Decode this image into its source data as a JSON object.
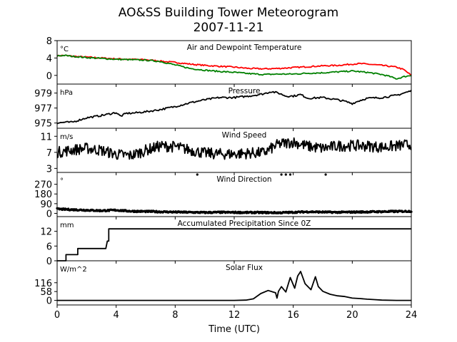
{
  "title": "AO&SS Building Tower Meteorogram",
  "subtitle": "2007-11-21",
  "xlabel": "Time (UTC)",
  "chart_data": [
    {
      "type": "line",
      "title": "Air and Dewpoint Temperature",
      "ylabel": "°C",
      "xlim": [
        0,
        24
      ],
      "ylim": [
        -2,
        8
      ],
      "yticks": [
        0,
        4,
        8
      ],
      "series": [
        {
          "name": "",
          "color": "#ff0000",
          "x": [
            0,
            0.5,
            1,
            2,
            3,
            4,
            5,
            6,
            7,
            7.5,
            8,
            9,
            10,
            11,
            12,
            13,
            14,
            15,
            16,
            17,
            18,
            19,
            20,
            20.5,
            21,
            22,
            22.5,
            23,
            23.5,
            24
          ],
          "y": [
            4.5,
            4.6,
            4.4,
            4.2,
            4.0,
            3.8,
            3.7,
            3.6,
            3.3,
            3.1,
            3.0,
            2.6,
            2.3,
            2.1,
            1.9,
            1.6,
            1.5,
            1.6,
            1.8,
            2.0,
            2.2,
            2.3,
            2.6,
            2.7,
            2.6,
            2.3,
            2.1,
            1.9,
            1.3,
            0.0
          ]
        },
        {
          "name": "",
          "color": "#008000",
          "x": [
            0,
            0.5,
            1,
            2,
            3,
            4,
            5,
            6,
            7,
            8,
            9,
            10,
            11,
            12,
            13,
            14,
            15,
            16,
            17,
            18,
            19,
            20,
            21,
            22,
            22.5,
            23,
            23.5,
            24
          ],
          "y": [
            4.5,
            4.6,
            4.4,
            4.1,
            3.9,
            3.7,
            3.6,
            3.5,
            3.2,
            2.4,
            1.6,
            1.2,
            0.9,
            0.7,
            0.4,
            0.2,
            0.3,
            0.3,
            0.5,
            0.6,
            0.8,
            1.0,
            0.7,
            0.2,
            -0.2,
            -0.8,
            -0.3,
            0.0
          ]
        }
      ]
    },
    {
      "type": "line",
      "title": "Pressure",
      "ylabel": "hPa",
      "xlim": [
        0,
        24
      ],
      "ylim": [
        974.3,
        980.2
      ],
      "yticks": [
        975,
        977,
        979
      ],
      "series": [
        {
          "name": "",
          "color": "#000000",
          "x": [
            0,
            0.5,
            1,
            1.5,
            2,
            3,
            4,
            4.3,
            4.7,
            5,
            6,
            7,
            8,
            9,
            10,
            11,
            12,
            13,
            14,
            14.5,
            15,
            15.5,
            16,
            16.5,
            17,
            18,
            19,
            19.5,
            20,
            20.5,
            21,
            22,
            23,
            23.5,
            24
          ],
          "y": [
            975.0,
            975.1,
            975.1,
            975.4,
            975.7,
            976.0,
            976.4,
            975.9,
            976.3,
            976.3,
            976.5,
            976.8,
            977.2,
            977.7,
            978.1,
            978.4,
            978.4,
            978.6,
            978.9,
            979.2,
            979.0,
            978.6,
            978.6,
            978.8,
            978.3,
            978.4,
            978.1,
            977.9,
            977.6,
            978.0,
            978.3,
            978.4,
            978.7,
            979.0,
            979.3
          ]
        }
      ]
    },
    {
      "type": "line",
      "title": "Wind Speed",
      "ylabel": "m/s",
      "xlim": [
        0,
        24
      ],
      "ylim": [
        2,
        13
      ],
      "yticks": [
        3,
        7,
        11
      ],
      "series": [
        {
          "name": "",
          "color": "#000000",
          "x": [
            0,
            1,
            2,
            3,
            4,
            5,
            6,
            7,
            8,
            9,
            10,
            11,
            12,
            13,
            14,
            15,
            16,
            17,
            18,
            19,
            20,
            21,
            22,
            23,
            24
          ],
          "y": [
            7.0,
            7.6,
            8.0,
            7.5,
            6.5,
            6.2,
            7.5,
            8.6,
            8.4,
            7.6,
            6.8,
            6.6,
            6.6,
            6.8,
            6.9,
            9.0,
            9.6,
            8.5,
            8.0,
            8.6,
            8.7,
            8.6,
            8.3,
            8.6,
            9.0
          ]
        }
      ]
    },
    {
      "type": "scatter",
      "title": "Wind Direction",
      "ylabel": "°",
      "xlim": [
        0,
        24
      ],
      "ylim": [
        -30,
        380
      ],
      "yticks": [
        0,
        90,
        180,
        270
      ],
      "series": [
        {
          "name": "",
          "color": "#000000",
          "x": [
            0,
            1,
            2,
            3,
            4,
            5,
            6,
            7,
            8,
            9,
            10,
            11,
            12,
            13,
            14,
            15,
            16,
            17,
            18,
            19,
            20,
            21,
            22,
            23,
            24
          ],
          "y": [
            40,
            35,
            30,
            25,
            30,
            20,
            18,
            15,
            12,
            10,
            8,
            10,
            9,
            8,
            8,
            6,
            10,
            15,
            12,
            10,
            12,
            14,
            16,
            18,
            20
          ]
        },
        {
          "name": "",
          "color": "#000000",
          "x": [
            9.5,
            15.2,
            15.5,
            15.8,
            18.2
          ],
          "y": [
            360,
            360,
            360,
            360,
            360
          ]
        }
      ]
    },
    {
      "type": "line",
      "title": "Accumulated Precipitation Since 0Z",
      "ylabel": "mm",
      "xlim": [
        0,
        24
      ],
      "ylim": [
        0,
        18
      ],
      "yticks": [
        0,
        6,
        12
      ],
      "series": [
        {
          "name": "",
          "color": "#000000",
          "x": [
            0,
            0.6,
            0.6,
            1.4,
            1.4,
            3.3,
            3.4,
            3.5,
            3.5,
            24
          ],
          "y": [
            0,
            0,
            2.5,
            2.5,
            5.0,
            5.0,
            8.0,
            8.0,
            13.0,
            13.0
          ]
        }
      ]
    },
    {
      "type": "line",
      "title": "Solar Flux",
      "ylabel": "W/m^2",
      "xlim": [
        0,
        24
      ],
      "ylim": [
        -30,
        260
      ],
      "yticks": [
        0,
        58,
        116
      ],
      "series": [
        {
          "name": "",
          "color": "#000000",
          "x": [
            0,
            6,
            12,
            12.8,
            13.3,
            13.8,
            14.3,
            14.8,
            14.9,
            15.0,
            15.2,
            15.5,
            15.8,
            16.1,
            16.3,
            16.5,
            16.8,
            17.2,
            17.5,
            17.7,
            18,
            18.5,
            19,
            19.5,
            20,
            20.5,
            21,
            21.5,
            22,
            23,
            24
          ],
          "y": [
            0,
            0,
            0,
            2,
            10,
            45,
            65,
            50,
            15,
            60,
            90,
            55,
            150,
            80,
            160,
            190,
            110,
            70,
            155,
            90,
            60,
            40,
            30,
            25,
            15,
            12,
            8,
            5,
            2,
            0,
            0
          ]
        }
      ]
    }
  ],
  "x_ticks": [
    "0",
    "4",
    "8",
    "12",
    "16",
    "20",
    "24"
  ]
}
